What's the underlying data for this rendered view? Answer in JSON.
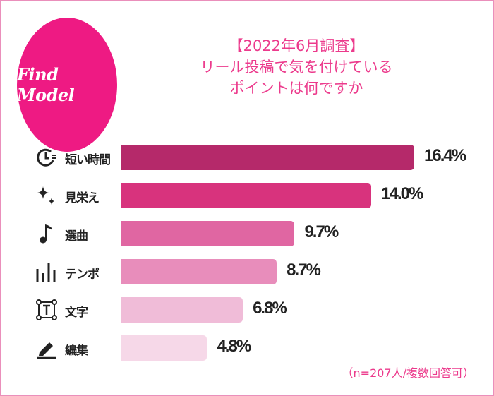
{
  "logo": {
    "text": "Find Model"
  },
  "title": [
    "【2022年6月調査】",
    "リール投稿で気を付けている",
    "ポイントは何ですか"
  ],
  "note": "（n=207人/複数回答可）",
  "chart_data": {
    "type": "bar",
    "orientation": "horizontal",
    "categories": [
      "短い時間",
      "見栄え",
      "選曲",
      "テンポ",
      "文字",
      "編集"
    ],
    "values": [
      16.4,
      14.0,
      9.7,
      8.7,
      6.8,
      4.8
    ],
    "value_labels": [
      "16.4%",
      "14.0%",
      "9.7%",
      "8.7%",
      "6.8%",
      "4.8%"
    ],
    "icons": [
      "clock-icon",
      "sparkle-icon",
      "music-note-icon",
      "tempo-bars-icon",
      "text-box-icon",
      "pen-icon"
    ],
    "colors": [
      "#b5296a",
      "#d8337d",
      "#e066a2",
      "#e88dbb",
      "#f0bcd8",
      "#f6d8e8"
    ],
    "xlim": [
      0,
      16.4
    ],
    "grid": false
  }
}
